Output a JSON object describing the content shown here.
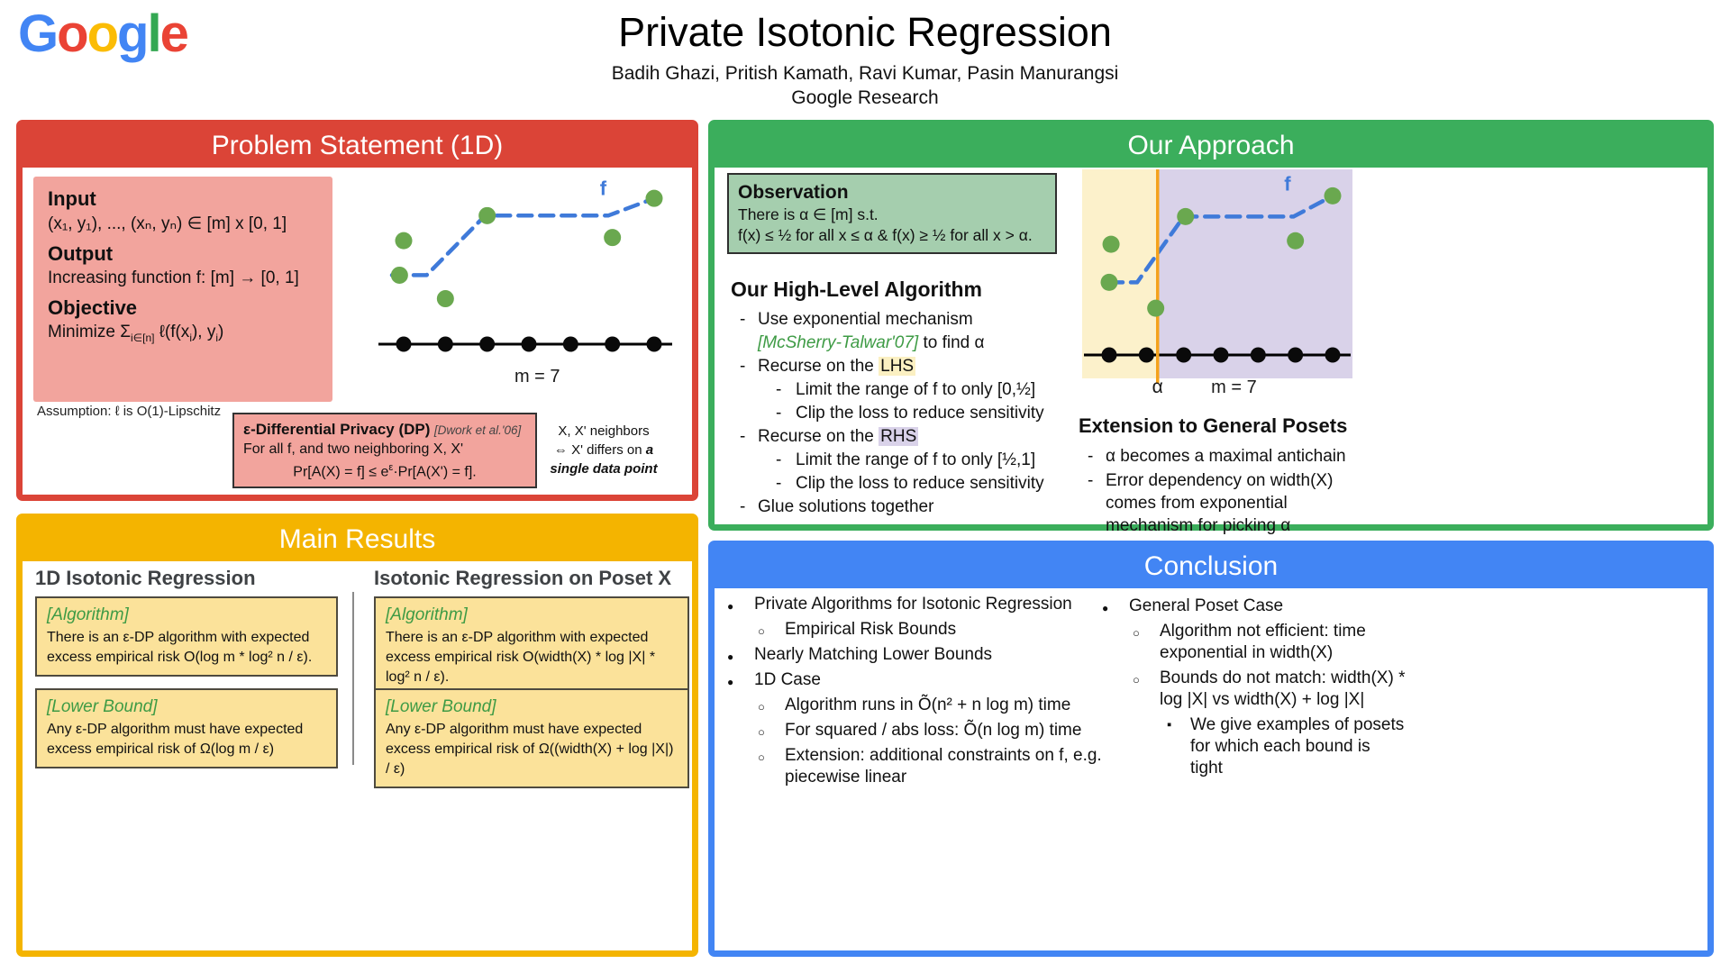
{
  "brand_colors": {
    "red": "#DB4437",
    "green": "#3BAE5C",
    "yellow": "#F4B400",
    "blue": "#4285F4"
  },
  "header": {
    "logo_letters": [
      "G",
      "o",
      "o",
      "g",
      "l",
      "e"
    ],
    "title": "Private Isotonic Regression",
    "authors": "Badih Ghazi, Pritish Kamath, Ravi Kumar, Pasin Manurangsi",
    "affiliation": "Google Research"
  },
  "problem": {
    "panel_title": "Problem Statement (1D)",
    "input_label": "Input",
    "input_text": "(x₁, y₁), ..., (xₙ, yₙ) ∈ [m] x [0, 1]",
    "output_label": "Output",
    "output_text": "Increasing function f: [m] → [0, 1]",
    "objective_label": "Objective",
    "objective": {
      "p1": "Minimize Σ",
      "sub1": "i∈[n]",
      "p2": " ℓ(f(x",
      "sub2": "i",
      "p3": "), y",
      "sub3": "i",
      "p4": ")"
    },
    "assumption": "Assumption: ℓ is O(1)-Lipschitz",
    "dp_box": {
      "title": "ε-Differential Privacy (DP)",
      "cite": "[Dwork et al.'06]",
      "line1": "For all f, and two neighboring X, X'",
      "formula": {
        "p1": "Pr[A(X) = f] ≤ e",
        "sup": "ε",
        "p2": "·Pr[A(X') = f]."
      }
    },
    "neighbors": {
      "line1": "X, X' neighbors",
      "line2a": "⇔ X' differs on ",
      "line2b": "a",
      "line3": "single data point"
    }
  },
  "approach": {
    "panel_title": "Our Approach",
    "observation": {
      "title": "Observation",
      "line1": "There is α ∈ [m] s.t.",
      "line2": "f(x) ≤ ½ for all x ≤ α & f(x) ≥ ½ for all x > α."
    },
    "algorithm_title": "Our High-Level Algorithm",
    "steps": {
      "s1a": "Use exponential mechanism",
      "s1b": "[McSherry-Talwar'07]",
      "s1c": " to find α",
      "s2a": "Recurse on the ",
      "s2b": "LHS",
      "s2sub1": "Limit the range of f to only [0,½]",
      "s2sub2": "Clip the loss to reduce sensitivity",
      "s3a": "Recurse on the ",
      "s3b": "RHS",
      "s3sub1": "Limit the range of f to only [½,1]",
      "s3sub2": "Clip the loss to reduce sensitivity",
      "s4": "Glue solutions together"
    },
    "extension_title": "Extension to General Posets",
    "extension_items": [
      "α becomes a maximal antichain",
      "Error dependency on width(X) comes from exponential mechanism for picking α"
    ]
  },
  "results": {
    "panel_title": "Main Results",
    "col1_title": "1D Isotonic Regression",
    "col2_title": "Isotonic Regression on Poset X",
    "col1_algorithm_label": "[Algorithm]",
    "col1_algorithm_text": "There is an ε-DP algorithm with expected excess empirical risk O(log m * log² n / ε).",
    "col1_lower_label": "[Lower Bound]",
    "col1_lower_text": "Any ε-DP algorithm must have expected excess empirical risk of Ω(log m / ε)",
    "col2_algorithm_label": "[Algorithm]",
    "col2_algorithm_text": "There is an ε-DP algorithm with expected excess empirical risk O(width(X) * log |X| * log² n / ε).",
    "col2_lower_label": "[Lower Bound]",
    "col2_lower_text": "Any ε-DP algorithm must have expected excess empirical risk of Ω((width(X) + log |X|) / ε)"
  },
  "conclusion": {
    "panel_title": "Conclusion",
    "left": [
      {
        "level": 1,
        "text": "Private Algorithms for Isotonic Regression"
      },
      {
        "level": 2,
        "text": "Empirical Risk Bounds"
      },
      {
        "level": 1,
        "text": "Nearly Matching Lower Bounds"
      },
      {
        "level": 1,
        "text": "1D Case"
      },
      {
        "level": 2,
        "text": "Algorithm runs in Õ(n² + n log m) time"
      },
      {
        "level": 2,
        "text": "For squared / abs loss: Õ(n log m) time"
      },
      {
        "level": 2,
        "text": "Extension: additional constraints on f, e.g. piecewise linear"
      }
    ],
    "right": [
      {
        "level": 1,
        "text": "General Poset Case"
      },
      {
        "level": 2,
        "text": "Algorithm not efficient:  time exponential in width(X)"
      },
      {
        "level": 2,
        "text": "Bounds do not match: width(X) * log |X|  vs width(X) + log |X|"
      },
      {
        "level": 3,
        "text": "We give examples of posets for which each bound is tight"
      }
    ]
  },
  "chart_data": [
    {
      "type": "scatter",
      "name": "isotonic-regression-example",
      "m": 7,
      "x_range": [
        1,
        7
      ],
      "y_range": [
        0,
        1
      ],
      "points": [
        [
          1.0,
          0.66
        ],
        [
          0.9,
          0.44
        ],
        [
          2.0,
          0.29
        ],
        [
          3.0,
          0.82
        ],
        [
          6.0,
          0.68
        ],
        [
          7.0,
          0.93
        ]
      ],
      "step_line": [
        [
          0.72,
          0.44
        ],
        [
          1.55,
          0.44
        ],
        [
          2.95,
          0.82
        ],
        [
          5.9,
          0.82
        ],
        [
          7.0,
          0.93
        ]
      ],
      "f_label": "f",
      "f_label_x": 5.7,
      "f_label_y": 0.95,
      "caption": "m = 7",
      "caption_x": 4.2,
      "colors": {
        "point": "#6AA84F",
        "line": "#3F7AD9",
        "axis": "#000000"
      }
    },
    {
      "type": "scatter",
      "name": "algorithm-split-example",
      "m": 7,
      "x_range": [
        1,
        7
      ],
      "y_range": [
        0,
        1
      ],
      "points": [
        [
          1.05,
          0.64
        ],
        [
          1.0,
          0.42
        ],
        [
          2.25,
          0.27
        ],
        [
          3.05,
          0.8
        ],
        [
          6.0,
          0.66
        ],
        [
          7.0,
          0.92
        ]
      ],
      "step_line": [
        [
          1.0,
          0.42
        ],
        [
          1.75,
          0.42
        ],
        [
          3.0,
          0.8
        ],
        [
          5.95,
          0.8
        ],
        [
          7.0,
          0.92
        ]
      ],
      "alpha": 2.3,
      "alpha_label": "α",
      "alpha_color": "#F5A21B",
      "regions": {
        "lhs": "#FCF1CB",
        "rhs": "#D9D2E9"
      },
      "f_label": "f",
      "f_label_x": 5.7,
      "f_label_y": 0.95,
      "caption": "m = 7",
      "caption_x": 4.35,
      "colors": {
        "point": "#6AA84F",
        "line": "#3F7AD9",
        "axis": "#000000"
      }
    }
  ]
}
